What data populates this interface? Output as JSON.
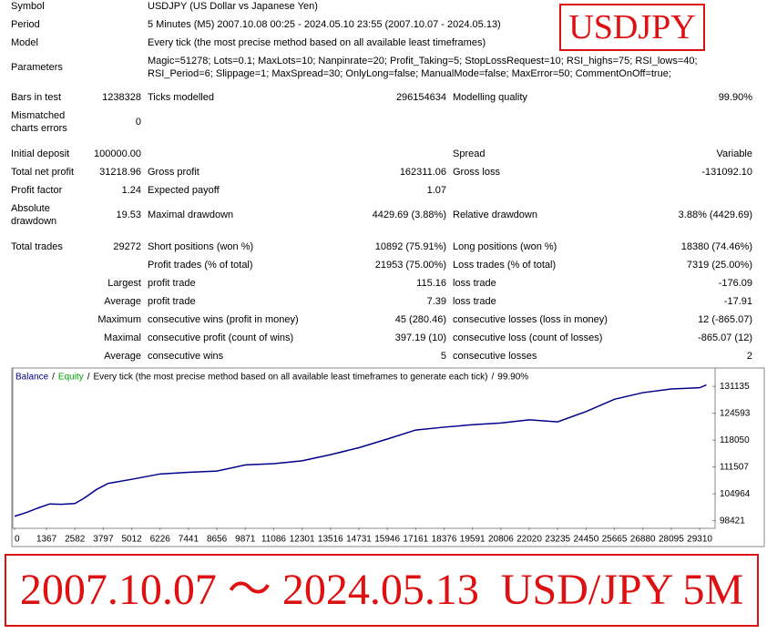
{
  "report": {
    "rows": [
      {
        "label": "Symbol",
        "value2": "USDJPY (US Dollar vs Japanese Yen)"
      },
      {
        "label": "Period",
        "value2": "5 Minutes (M5) 2007.10.08 00:25 - 2024.05.10 23:55 (2007.10.07 - 2024.05.13)"
      },
      {
        "label": "Model",
        "value2": "Every tick (the most precise method based on all available least timeframes)"
      },
      {
        "label": "Parameters",
        "value2": [
          "Magic=51278; Lots=0.1; MaxLots=10; Nanpinrate=20; Profit_Taking=5; StopLossRequest=10; RSI_highs=75; RSI_lows=40;",
          "RSI_Period=6; Slippage=1; MaxSpread=30; OnlyLong=false; ManualMode=false; MaxError=50; CommentOnOff=true;"
        ]
      },
      {
        "label": "Bars in test",
        "value": "1238328",
        "label2": "Ticks modelled",
        "value2r": "296154634",
        "label3": "Modelling quality",
        "value3": "99.90%"
      },
      {
        "label": [
          "Mismatched",
          "charts errors"
        ],
        "value": "0"
      },
      {
        "label": "Initial deposit",
        "value": "100000.00",
        "label3": "Spread",
        "value3": "Variable"
      },
      {
        "label": "Total net profit",
        "value": "31218.96",
        "label2": "Gross profit",
        "value2r": "162311.06",
        "label3": "Gross loss",
        "value3": "-131092.10"
      },
      {
        "label": "Profit factor",
        "value": "1.24",
        "label2": "Expected payoff",
        "value2r": "1.07"
      },
      {
        "label": [
          "Absolute",
          "drawdown"
        ],
        "value": "19.53",
        "label2": "Maximal drawdown",
        "value2r": "4429.69 (3.88%)",
        "label3": "Relative drawdown",
        "value3": "3.88% (4429.69)"
      },
      {
        "label": "Total trades",
        "value": "29272",
        "label2": "Short positions (won %)",
        "value2r": "10892 (75.91%)",
        "label3": "Long positions (won %)",
        "value3": "18380 (74.46%)"
      },
      {
        "label2": "Profit trades (% of total)",
        "value2r": "21953 (75.00%)",
        "label3": "Loss trades (% of total)",
        "value3": "7319 (25.00%)"
      },
      {
        "prefix": "Largest",
        "label2": "profit trade",
        "value2r": "115.16",
        "label3": "loss trade",
        "value3": "-176.09"
      },
      {
        "prefix": "Average",
        "label2": "profit trade",
        "value2r": "7.39",
        "label3": "loss trade",
        "value3": "-17.91"
      },
      {
        "prefix": "Maximum",
        "label2": "consecutive wins (profit in money)",
        "value2r": "45 (280.46)",
        "label3": "consecutive losses (loss in money)",
        "value3": "12 (-865.07)"
      },
      {
        "prefix": "Maximal",
        "label2": "consecutive profit (count of wins)",
        "value2r": "397.19 (10)",
        "label3": "consecutive loss (count of losses)",
        "value3": "-865.07 (12)"
      },
      {
        "prefix": "Average",
        "label2": "consecutive wins",
        "value2r": "5",
        "label3": "consecutive losses",
        "value3": "2"
      }
    ]
  },
  "stamp": "USDJPY",
  "banner": "2007.10.07 ～ 2024.05.13  USD/JPY 5M",
  "chart_data": {
    "type": "line",
    "separator": "/",
    "equity": {
      "name": "Equity",
      "color": "#00a000"
    },
    "subtitle": "Every tick (the most precise method based on all available least timeframes to generate each tick)",
    "quality": "99.90%",
    "x": [
      0,
      500,
      1000,
      1500,
      2000,
      2582,
      3000,
      3500,
      4000,
      5012,
      6226,
      7441,
      8656,
      9871,
      11086,
      12301,
      13516,
      14731,
      15946,
      17161,
      18376,
      19591,
      20806,
      22020,
      23235,
      24450,
      25665,
      26880,
      28095,
      29310,
      29600
    ],
    "series": [
      {
        "name": "Balance",
        "color": "#00008b",
        "values": [
          99500,
          100400,
          101500,
          102500,
          102400,
          102600,
          104000,
          106000,
          107500,
          108500,
          109800,
          110200,
          110500,
          112000,
          112300,
          113000,
          114500,
          116200,
          118300,
          120500,
          121200,
          121800,
          122200,
          123000,
          122500,
          125000,
          128000,
          129600,
          130500,
          130800,
          131500
        ]
      }
    ],
    "xlim": [
      0,
      29970
    ],
    "ylim": [
      97005,
      135383
    ],
    "xticks": [
      0,
      1367,
      2582,
      3797,
      5012,
      6226,
      7441,
      8656,
      9871,
      11086,
      12301,
      13516,
      14731,
      15946,
      17161,
      18376,
      19591,
      20806,
      22020,
      23235,
      24450,
      25665,
      26880,
      28095,
      29310
    ],
    "yticks": [
      98421,
      104964,
      111507,
      118050,
      124593,
      131135
    ]
  }
}
